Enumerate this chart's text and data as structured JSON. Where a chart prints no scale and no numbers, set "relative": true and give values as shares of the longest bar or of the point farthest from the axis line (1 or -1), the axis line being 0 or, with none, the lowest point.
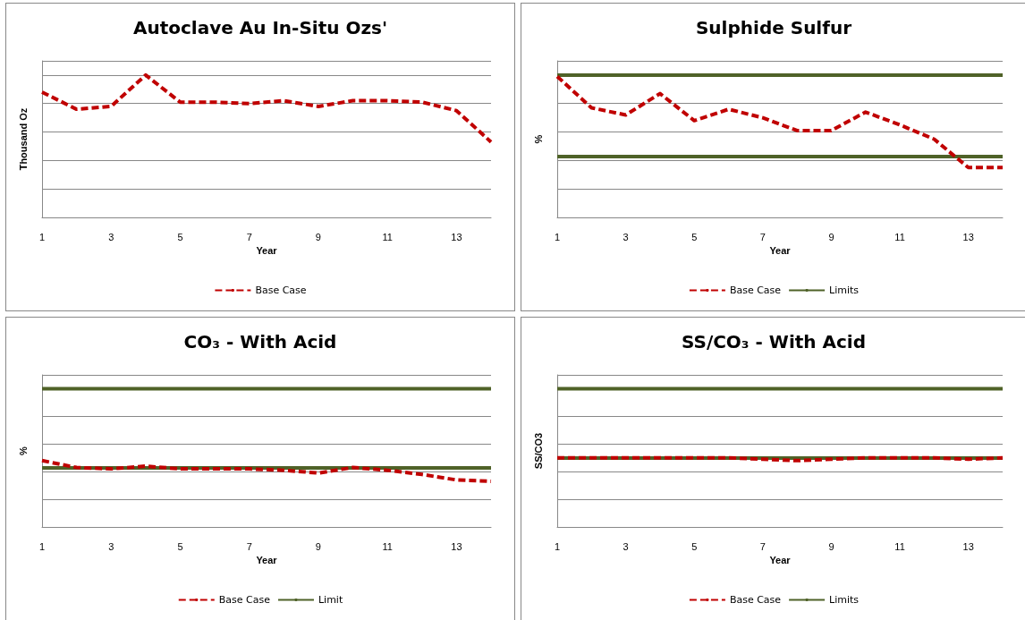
{
  "chart_data": [
    {
      "type": "line",
      "title": "Autoclave Au In-Situ Ozs'",
      "xlabel": "Year",
      "ylabel": "Thousand Oz",
      "relative": true,
      "x": [
        1,
        2,
        3,
        4,
        5,
        6,
        7,
        8,
        9,
        10,
        11,
        12,
        13,
        14
      ],
      "xlim": [
        1,
        14
      ],
      "xticks": [
        1,
        3,
        5,
        7,
        9,
        11,
        13
      ],
      "grid": "y",
      "legend": "bottom",
      "marker": "none",
      "series": [
        {
          "name": "Base Case",
          "color": "#c00000",
          "line_style": "dashed",
          "values": [
            0.88,
            0.76,
            0.78,
            1,
            0.81,
            0.81,
            0.8,
            0.82,
            0.78,
            0.82,
            0.82,
            0.81,
            0.75,
            0.53
          ]
        }
      ]
    },
    {
      "type": "line",
      "title": "Sulphide Sulfur",
      "xlabel": "Year",
      "ylabel": "%",
      "relative": true,
      "x": [
        1,
        2,
        3,
        4,
        5,
        6,
        7,
        8,
        9,
        10,
        11,
        12,
        13,
        14
      ],
      "xlim": [
        1,
        14
      ],
      "xticks": [
        1,
        3,
        5,
        7,
        9,
        11,
        13
      ],
      "grid": "y",
      "legend": "bottom",
      "marker": "none",
      "series": [
        {
          "name": "Base Case",
          "color": "#c00000",
          "line_style": "dashed",
          "values": [
            0.99,
            0.77,
            0.72,
            0.87,
            0.68,
            0.76,
            0.7,
            0.61,
            0.61,
            0.74,
            0.65,
            0.55,
            0.35,
            0.35
          ]
        },
        {
          "name": "Limits",
          "color": "#4f6228",
          "line_style": "solid",
          "values": [
            1,
            1,
            1,
            1,
            1,
            1,
            1,
            1,
            1,
            1,
            1,
            1,
            1,
            1
          ]
        }
      ],
      "ref_lines": [
        {
          "axis": "y",
          "value": 0.43,
          "color": "#4f6228",
          "line_style": "solid"
        }
      ]
    },
    {
      "type": "line",
      "title": "CO₃ - With Acid",
      "xlabel": "Year",
      "ylabel": "%",
      "relative": true,
      "x": [
        1,
        2,
        3,
        4,
        5,
        6,
        7,
        8,
        9,
        10,
        11,
        12,
        13,
        14
      ],
      "xlim": [
        1,
        14
      ],
      "xticks": [
        1,
        3,
        5,
        7,
        9,
        11,
        13
      ],
      "grid": "y",
      "legend": "bottom",
      "marker": "none",
      "series": [
        {
          "name": "Base Case",
          "color": "#c00000",
          "line_style": "dashed",
          "values": [
            0.48,
            0.43,
            0.42,
            0.44,
            0.42,
            0.42,
            0.42,
            0.41,
            0.39,
            0.43,
            0.41,
            0.38,
            0.34,
            0.33
          ]
        },
        {
          "name": "Limit",
          "color": "#4f6228",
          "line_style": "solid",
          "values": [
            1,
            1,
            1,
            1,
            1,
            1,
            1,
            1,
            1,
            1,
            1,
            1,
            1,
            1
          ]
        }
      ],
      "ref_lines": [
        {
          "axis": "y",
          "value": 0.43,
          "color": "#4f6228",
          "line_style": "solid"
        }
      ]
    },
    {
      "type": "line",
      "title": "SS/CO₃ - With Acid",
      "xlabel": "Year",
      "ylabel": "SS/CO3",
      "relative": true,
      "x": [
        1,
        2,
        3,
        4,
        5,
        6,
        7,
        8,
        9,
        10,
        11,
        12,
        13,
        14
      ],
      "xlim": [
        1,
        14
      ],
      "xticks": [
        1,
        3,
        5,
        7,
        9,
        11,
        13
      ],
      "grid": "y",
      "legend": "bottom",
      "marker": "none",
      "series": [
        {
          "name": "Base Case",
          "color": "#c00000",
          "line_style": "dashed",
          "values": [
            0.5,
            0.5,
            0.5,
            0.5,
            0.5,
            0.5,
            0.49,
            0.48,
            0.49,
            0.5,
            0.5,
            0.5,
            0.49,
            0.5
          ]
        },
        {
          "name": "Limits",
          "color": "#4f6228",
          "line_style": "solid",
          "values": [
            1,
            1,
            1,
            1,
            1,
            1,
            1,
            1,
            1,
            1,
            1,
            1,
            1,
            1
          ]
        }
      ],
      "ref_lines": [
        {
          "axis": "y",
          "value": 0.5,
          "color": "#4f6228",
          "line_style": "solid"
        }
      ]
    }
  ]
}
